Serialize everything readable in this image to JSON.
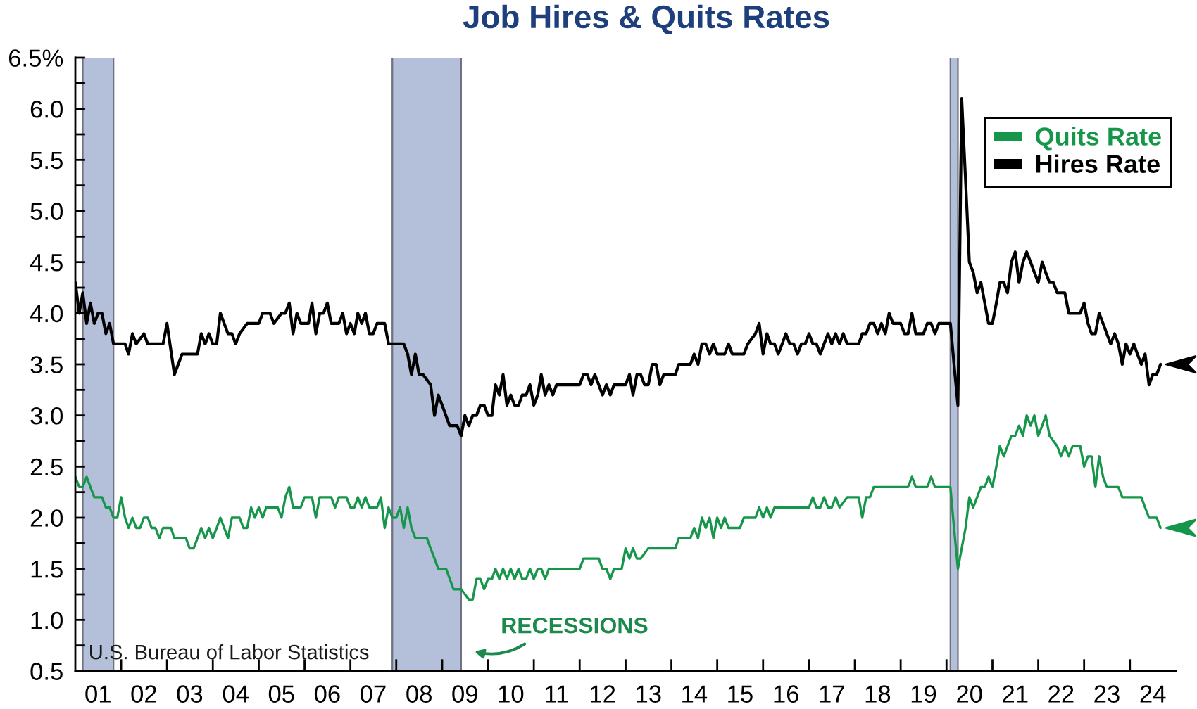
{
  "chart_data": {
    "type": "line",
    "title": "Job Hires & Quits Rates",
    "xlim": [
      "2001-01",
      "2025-01"
    ],
    "xticks": [
      {
        "value": "2001-07",
        "label": "01"
      },
      {
        "value": "2002-01",
        "label": null
      },
      {
        "value": "2002-07",
        "label": "02"
      },
      {
        "value": "2003-01",
        "label": null
      },
      {
        "value": "2003-07",
        "label": "03"
      },
      {
        "value": "2004-01",
        "label": null
      },
      {
        "value": "2004-07",
        "label": "04"
      },
      {
        "value": "2005-01",
        "label": null
      },
      {
        "value": "2005-07",
        "label": "05"
      },
      {
        "value": "2006-01",
        "label": null
      },
      {
        "value": "2006-07",
        "label": "06"
      },
      {
        "value": "2007-01",
        "label": null
      },
      {
        "value": "2007-07",
        "label": "07"
      },
      {
        "value": "2008-01",
        "label": null
      },
      {
        "value": "2008-07",
        "label": "08"
      },
      {
        "value": "2009-01",
        "label": null
      },
      {
        "value": "2009-07",
        "label": "09"
      },
      {
        "value": "2010-01",
        "label": null
      },
      {
        "value": "2010-07",
        "label": "10"
      },
      {
        "value": "2011-01",
        "label": null
      },
      {
        "value": "2011-07",
        "label": "11"
      },
      {
        "value": "2012-01",
        "label": null
      },
      {
        "value": "2012-07",
        "label": "12"
      },
      {
        "value": "2013-01",
        "label": null
      },
      {
        "value": "2013-07",
        "label": "13"
      },
      {
        "value": "2014-01",
        "label": null
      },
      {
        "value": "2014-07",
        "label": "14"
      },
      {
        "value": "2015-01",
        "label": null
      },
      {
        "value": "2015-07",
        "label": "15"
      },
      {
        "value": "2016-01",
        "label": null
      },
      {
        "value": "2016-07",
        "label": "16"
      },
      {
        "value": "2017-01",
        "label": null
      },
      {
        "value": "2017-07",
        "label": "17"
      },
      {
        "value": "2018-01",
        "label": null
      },
      {
        "value": "2018-07",
        "label": "18"
      },
      {
        "value": "2019-01",
        "label": null
      },
      {
        "value": "2019-07",
        "label": "19"
      },
      {
        "value": "2020-01",
        "label": null
      },
      {
        "value": "2020-07",
        "label": "20"
      },
      {
        "value": "2021-01",
        "label": null
      },
      {
        "value": "2021-07",
        "label": "21"
      },
      {
        "value": "2022-01",
        "label": null
      },
      {
        "value": "2022-07",
        "label": "22"
      },
      {
        "value": "2023-01",
        "label": null
      },
      {
        "value": "2023-07",
        "label": "23"
      },
      {
        "value": "2024-01",
        "label": null
      },
      {
        "value": "2024-07",
        "label": "24"
      }
    ],
    "ylim": [
      0.5,
      6.5
    ],
    "yticks": [
      0.5,
      {
        "value": 0.75,
        "label": null
      },
      {
        "value": 1,
        "label": "1.0"
      },
      {
        "value": 1.25,
        "label": null
      },
      1.5,
      {
        "value": 1.75,
        "label": null
      },
      {
        "value": 2,
        "label": "2.0"
      },
      {
        "value": 2.25,
        "label": null
      },
      2.5,
      {
        "value": 2.75,
        "label": null
      },
      {
        "value": 3,
        "label": "3.0"
      },
      {
        "value": 3.25,
        "label": null
      },
      3.5,
      {
        "value": 3.75,
        "label": null
      },
      {
        "value": 4,
        "label": "4.0"
      },
      {
        "value": 4.25,
        "label": null
      },
      4.5,
      {
        "value": 4.75,
        "label": null
      },
      {
        "value": 5,
        "label": "5.0"
      },
      {
        "value": 5.25,
        "label": null
      },
      5.5,
      {
        "value": 5.75,
        "label": null
      },
      {
        "value": 6,
        "label": "6.0"
      },
      {
        "value": 6.25,
        "label": null
      },
      {
        "value": 6.5,
        "label": "6.5%"
      }
    ],
    "legend": "top right",
    "bands": [
      {
        "axis": "x",
        "from": "2001-03",
        "to": "2001-11",
        "color": "#b4c0d9"
      },
      {
        "axis": "x",
        "from": "2007-12",
        "to": "2009-06",
        "color": "#b4c0d9"
      },
      {
        "axis": "x",
        "from": "2020-02",
        "to": "2020-04",
        "color": "#b4c0d9"
      }
    ],
    "annotations": [
      "U.S. Bureau of Labor Statistics",
      "RECESSIONS"
    ],
    "series": [
      {
        "name": "Quits Rate",
        "color": "#16964a",
        "x": [
          "2001-01",
          "2001-02",
          "2001-03",
          "2001-04",
          "2001-05",
          "2001-06",
          "2001-08",
          "2001-09",
          "2001-10",
          "2001-11",
          "2001-12",
          "2002-01",
          "2002-02",
          "2002-03",
          "2002-04",
          "2002-05",
          "2002-06",
          "2002-07",
          "2002-08",
          "2002-09",
          "2002-10",
          "2002-11",
          "2002-12",
          "2003-02",
          "2003-03",
          "2003-06",
          "2003-07",
          "2003-08",
          "2003-09",
          "2003-10",
          "2003-11",
          "2003-12",
          "2004-01",
          "2004-02",
          "2004-03",
          "2004-05",
          "2004-06",
          "2004-08",
          "2004-09",
          "2004-10",
          "2004-11",
          "2004-12",
          "2005-01",
          "2005-02",
          "2005-03",
          "2005-06",
          "2005-07",
          "2005-08",
          "2005-09",
          "2005-10",
          "2005-12",
          "2006-01",
          "2006-03",
          "2006-04",
          "2006-05",
          "2006-08",
          "2006-09",
          "2006-10",
          "2006-12",
          "2007-01",
          "2007-02",
          "2007-03",
          "2007-04",
          "2007-05",
          "2007-06",
          "2007-08",
          "2007-09",
          "2007-10",
          "2007-11",
          "2007-12",
          "2008-01",
          "2008-02",
          "2008-03",
          "2008-04",
          "2008-05",
          "2008-06",
          "2008-09",
          "2008-10",
          "2008-12",
          "2009-02",
          "2009-04",
          "2009-06",
          "2009-08",
          "2009-09",
          "2009-10",
          "2009-11",
          "2009-12",
          "2010-01",
          "2010-02",
          "2010-03",
          "2010-04",
          "2010-05",
          "2010-06",
          "2010-07",
          "2010-08",
          "2010-09",
          "2010-10",
          "2010-11",
          "2010-12",
          "2011-01",
          "2011-02",
          "2011-03",
          "2011-04",
          "2011-05",
          "2012-01",
          "2012-02",
          "2012-06",
          "2012-07",
          "2012-08",
          "2012-09",
          "2012-10",
          "2012-12",
          "2013-01",
          "2013-02",
          "2013-03",
          "2013-04",
          "2013-05",
          "2013-07",
          "2014-02",
          "2014-03",
          "2014-06",
          "2014-07",
          "2014-08",
          "2014-09",
          "2014-10",
          "2014-11",
          "2014-12",
          "2015-01",
          "2015-02",
          "2015-03",
          "2015-04",
          "2015-07",
          "2015-08",
          "2015-11",
          "2015-12",
          "2016-01",
          "2016-02",
          "2016-03",
          "2016-04",
          "2016-05",
          "2017-01",
          "2017-02",
          "2017-03",
          "2017-04",
          "2017-05",
          "2017-06",
          "2017-07",
          "2017-08",
          "2017-09",
          "2017-11",
          "2018-02",
          "2018-03",
          "2018-04",
          "2018-05",
          "2018-06",
          "2019-03",
          "2019-04",
          "2019-05",
          "2019-08",
          "2019-09",
          "2019-10",
          "2020-02",
          "2020-03",
          "2020-04",
          "2020-05",
          "2020-06",
          "2020-07",
          "2020-08",
          "2020-09",
          "2020-10",
          "2020-11",
          "2020-12",
          "2021-01",
          "2021-02",
          "2021-03",
          "2021-04",
          "2021-05",
          "2021-06",
          "2021-07",
          "2021-08",
          "2021-09",
          "2021-10",
          "2021-11",
          "2021-12",
          "2022-01",
          "2022-02",
          "2022-03",
          "2022-04",
          "2022-06",
          "2022-07",
          "2022-08",
          "2022-09",
          "2022-10",
          "2022-12",
          "2023-01",
          "2023-02",
          "2023-03",
          "2023-04",
          "2023-05",
          "2023-06",
          "2023-07",
          "2023-10",
          "2023-11",
          "2024-04",
          "2024-05",
          "2024-06",
          "2024-08",
          "2024-09"
        ],
        "values": [
          2.4,
          2.3,
          2.3,
          2.4,
          2.3,
          2.2,
          2.2,
          2.1,
          2.1,
          2.0,
          2.0,
          2.2,
          2.0,
          1.9,
          2.0,
          1.9,
          1.9,
          2.0,
          2.0,
          1.9,
          1.9,
          1.8,
          1.9,
          1.9,
          1.8,
          1.8,
          1.7,
          1.7,
          1.8,
          1.9,
          1.8,
          1.9,
          1.8,
          1.9,
          2.0,
          1.8,
          2.0,
          2.0,
          1.9,
          1.9,
          2.1,
          2.0,
          2.1,
          2.0,
          2.1,
          2.1,
          2.0,
          2.2,
          2.3,
          2.1,
          2.1,
          2.2,
          2.2,
          2.0,
          2.2,
          2.2,
          2.1,
          2.2,
          2.2,
          2.1,
          2.1,
          2.2,
          2.1,
          2.2,
          2.1,
          2.1,
          2.2,
          1.9,
          2.1,
          2.0,
          2.0,
          2.1,
          1.9,
          2.1,
          1.9,
          1.8,
          1.8,
          1.7,
          1.5,
          1.5,
          1.3,
          1.3,
          1.2,
          1.2,
          1.4,
          1.4,
          1.3,
          1.4,
          1.4,
          1.5,
          1.4,
          1.5,
          1.4,
          1.5,
          1.4,
          1.5,
          1.4,
          1.4,
          1.5,
          1.4,
          1.5,
          1.5,
          1.4,
          1.5,
          1.5,
          1.6,
          1.6,
          1.5,
          1.5,
          1.4,
          1.5,
          1.5,
          1.7,
          1.6,
          1.7,
          1.6,
          1.6,
          1.7,
          1.7,
          1.8,
          1.8,
          1.9,
          1.8,
          2.0,
          1.9,
          2.0,
          1.8,
          2.0,
          1.9,
          2.0,
          1.9,
          1.9,
          2.0,
          2.0,
          2.1,
          2.0,
          2.1,
          2.0,
          2.1,
          2.1,
          2.1,
          2.2,
          2.1,
          2.1,
          2.2,
          2.1,
          2.1,
          2.2,
          2.1,
          2.2,
          2.2,
          2.0,
          2.2,
          2.2,
          2.3,
          2.3,
          2.4,
          2.3,
          2.3,
          2.4,
          2.3,
          2.3,
          1.9,
          1.5,
          1.7,
          1.9,
          2.2,
          2.1,
          2.2,
          2.3,
          2.3,
          2.4,
          2.3,
          2.5,
          2.7,
          2.6,
          2.7,
          2.8,
          2.8,
          2.9,
          2.8,
          3.0,
          2.9,
          3.0,
          2.8,
          2.9,
          3.0,
          2.8,
          2.7,
          2.6,
          2.7,
          2.6,
          2.7,
          2.7,
          2.5,
          2.6,
          2.6,
          2.3,
          2.6,
          2.4,
          2.3,
          2.3,
          2.2,
          2.2,
          2.1,
          2.0,
          2.0,
          1.9
        ]
      },
      {
        "name": "Hires Rate",
        "color": "#000000",
        "x": [
          "2001-01",
          "2001-02",
          "2001-03",
          "2001-04",
          "2001-05",
          "2001-06",
          "2001-07",
          "2001-08",
          "2001-09",
          "2001-10",
          "2001-11",
          "2002-02",
          "2002-03",
          "2002-04",
          "2002-05",
          "2002-07",
          "2002-08",
          "2002-12",
          "2003-01",
          "2003-03",
          "2003-05",
          "2003-09",
          "2003-10",
          "2003-11",
          "2003-12",
          "2004-01",
          "2004-02",
          "2004-03",
          "2004-05",
          "2004-06",
          "2004-07",
          "2004-08",
          "2004-10",
          "2005-01",
          "2005-02",
          "2005-04",
          "2005-05",
          "2005-07",
          "2005-08",
          "2005-09",
          "2005-10",
          "2005-11",
          "2005-12",
          "2006-02",
          "2006-03",
          "2006-04",
          "2006-05",
          "2006-06",
          "2006-07",
          "2006-08",
          "2006-10",
          "2006-11",
          "2006-12",
          "2007-01",
          "2007-02",
          "2007-03",
          "2007-04",
          "2007-05",
          "2007-06",
          "2007-07",
          "2007-08",
          "2007-10",
          "2007-11",
          "2008-03",
          "2008-04",
          "2008-05",
          "2008-06",
          "2008-07",
          "2008-08",
          "2008-10",
          "2008-11",
          "2008-12",
          "2009-01",
          "2009-03",
          "2009-05",
          "2009-06",
          "2009-07",
          "2009-08",
          "2009-09",
          "2009-10",
          "2009-11",
          "2009-12",
          "2010-01",
          "2010-02",
          "2010-03",
          "2010-04",
          "2010-05",
          "2010-06",
          "2010-07",
          "2010-08",
          "2010-09",
          "2010-10",
          "2010-11",
          "2010-12",
          "2011-01",
          "2011-02",
          "2011-03",
          "2011-04",
          "2011-05",
          "2011-06",
          "2011-07",
          "2012-01",
          "2012-02",
          "2012-03",
          "2012-04",
          "2012-05",
          "2012-06",
          "2012-07",
          "2012-08",
          "2012-09",
          "2012-10",
          "2013-01",
          "2013-02",
          "2013-03",
          "2013-04",
          "2013-05",
          "2013-06",
          "2013-07",
          "2013-08",
          "2013-09",
          "2013-10",
          "2013-11",
          "2014-02",
          "2014-03",
          "2014-06",
          "2014-07",
          "2014-08",
          "2014-09",
          "2014-10",
          "2014-11",
          "2014-12",
          "2015-01",
          "2015-03",
          "2015-04",
          "2015-05",
          "2015-08",
          "2015-09",
          "2015-11",
          "2015-12",
          "2016-01",
          "2016-02",
          "2016-03",
          "2016-04",
          "2016-05",
          "2016-06",
          "2016-07",
          "2016-08",
          "2016-09",
          "2016-10",
          "2016-11",
          "2016-12",
          "2017-01",
          "2017-02",
          "2017-03",
          "2017-04",
          "2017-05",
          "2017-06",
          "2017-07",
          "2017-08",
          "2017-09",
          "2017-10",
          "2017-11",
          "2018-02",
          "2018-03",
          "2018-04",
          "2018-05",
          "2018-06",
          "2018-07",
          "2018-08",
          "2018-09",
          "2018-10",
          "2018-11",
          "2019-01",
          "2019-02",
          "2019-03",
          "2019-04",
          "2019-05",
          "2019-07",
          "2019-08",
          "2019-09",
          "2019-10",
          "2019-11",
          "2020-02",
          "2020-03",
          "2020-04",
          "2020-05",
          "2020-06",
          "2020-07",
          "2020-08",
          "2020-09",
          "2020-10",
          "2020-11",
          "2020-12",
          "2021-01",
          "2021-02",
          "2021-03",
          "2021-04",
          "2021-05",
          "2021-06",
          "2021-07",
          "2021-08",
          "2021-09",
          "2021-10",
          "2021-11",
          "2021-12",
          "2022-01",
          "2022-02",
          "2022-03",
          "2022-04",
          "2022-05",
          "2022-06",
          "2022-08",
          "2022-09",
          "2022-12",
          "2023-01",
          "2023-02",
          "2023-03",
          "2023-04",
          "2023-05",
          "2023-06",
          "2023-07",
          "2023-08",
          "2023-09",
          "2023-10",
          "2023-11",
          "2023-12",
          "2024-01",
          "2024-02",
          "2024-03",
          "2024-04",
          "2024-05",
          "2024-06",
          "2024-07",
          "2024-08",
          "2024-09"
        ],
        "values": [
          4.3,
          4.0,
          4.2,
          3.9,
          4.1,
          3.9,
          4.0,
          4.0,
          3.8,
          3.9,
          3.7,
          3.7,
          3.6,
          3.8,
          3.7,
          3.8,
          3.7,
          3.7,
          3.9,
          3.4,
          3.6,
          3.6,
          3.8,
          3.7,
          3.8,
          3.7,
          3.7,
          4.0,
          3.8,
          3.8,
          3.7,
          3.8,
          3.9,
          3.9,
          4.0,
          4.0,
          3.9,
          4.0,
          4.0,
          4.1,
          3.8,
          4.0,
          3.9,
          3.9,
          4.1,
          3.8,
          4.0,
          4.0,
          4.1,
          3.9,
          3.9,
          4.0,
          3.8,
          3.9,
          3.8,
          4.0,
          3.9,
          4.0,
          3.8,
          3.8,
          3.9,
          3.9,
          3.7,
          3.7,
          3.6,
          3.4,
          3.6,
          3.4,
          3.4,
          3.3,
          3.0,
          3.2,
          3.1,
          2.9,
          2.9,
          2.8,
          3.0,
          2.9,
          3.0,
          3.0,
          3.1,
          3.1,
          3.0,
          3.0,
          3.3,
          3.2,
          3.4,
          3.1,
          3.2,
          3.1,
          3.1,
          3.2,
          3.2,
          3.3,
          3.1,
          3.2,
          3.4,
          3.2,
          3.3,
          3.2,
          3.3,
          3.3,
          3.4,
          3.4,
          3.3,
          3.4,
          3.3,
          3.2,
          3.3,
          3.2,
          3.3,
          3.3,
          3.4,
          3.2,
          3.4,
          3.4,
          3.3,
          3.3,
          3.5,
          3.5,
          3.3,
          3.4,
          3.4,
          3.5,
          3.5,
          3.6,
          3.5,
          3.7,
          3.7,
          3.6,
          3.7,
          3.6,
          3.6,
          3.7,
          3.6,
          3.6,
          3.7,
          3.8,
          3.9,
          3.6,
          3.8,
          3.7,
          3.7,
          3.6,
          3.7,
          3.8,
          3.7,
          3.7,
          3.6,
          3.7,
          3.7,
          3.8,
          3.7,
          3.7,
          3.6,
          3.7,
          3.8,
          3.7,
          3.8,
          3.7,
          3.8,
          3.7,
          3.7,
          3.8,
          3.8,
          3.9,
          3.9,
          3.8,
          3.9,
          3.8,
          4.0,
          3.9,
          3.9,
          3.8,
          3.8,
          4.0,
          3.8,
          3.8,
          3.9,
          3.9,
          3.8,
          3.9,
          3.9,
          3.5,
          3.1,
          6.1,
          5.3,
          4.5,
          4.4,
          4.2,
          4.3,
          4.1,
          3.9,
          3.9,
          4.1,
          4.3,
          4.3,
          4.2,
          4.5,
          4.6,
          4.3,
          4.5,
          4.6,
          4.5,
          4.4,
          4.3,
          4.5,
          4.4,
          4.3,
          4.3,
          4.2,
          4.2,
          4.0,
          4.0,
          4.1,
          3.9,
          3.8,
          3.8,
          4.0,
          3.9,
          3.8,
          3.7,
          3.8,
          3.7,
          3.5,
          3.7,
          3.6,
          3.7,
          3.6,
          3.5,
          3.6,
          3.3,
          3.4,
          3.4,
          3.5
        ]
      }
    ]
  }
}
